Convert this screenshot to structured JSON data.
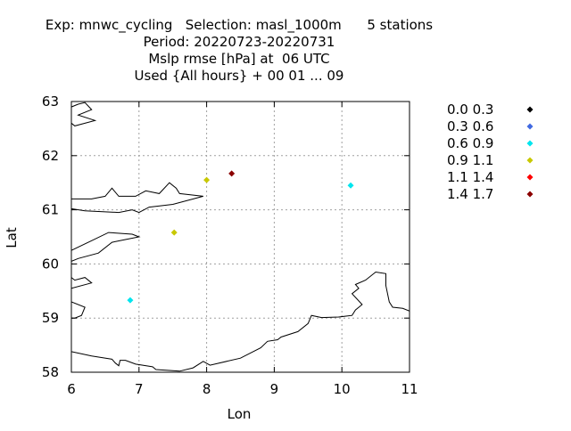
{
  "header": {
    "line1": "Exp: mnwc_cycling   Selection: masl_1000m      5 stations",
    "line2": "Period: 20220723-20220731",
    "line3": "Mslp rmse [hPa] at  06 UTC",
    "line4": "Used {All hours} + 00 01 ... 09"
  },
  "chart_data": {
    "type": "scatter",
    "xlabel": "Lon",
    "ylabel": "Lat",
    "xlim": [
      6,
      11
    ],
    "ylim": [
      58,
      63
    ],
    "xticks": [
      "6",
      "7",
      "8",
      "9",
      "10",
      "11"
    ],
    "yticks": [
      "58",
      "59",
      "60",
      "61",
      "62",
      "63"
    ],
    "grid": true,
    "legend_position": "right",
    "legend": [
      {
        "label": "0.0 0.3",
        "color": "#000000"
      },
      {
        "label": "0.3 0.6",
        "color": "#4169e1"
      },
      {
        "label": "0.6 0.9",
        "color": "#00e5ee"
      },
      {
        "label": "0.9 1.1",
        "color": "#c8c800"
      },
      {
        "label": "1.1 1.4",
        "color": "#ff0000"
      },
      {
        "label": "1.4 1.7",
        "color": "#8b0000"
      }
    ],
    "points": [
      {
        "lon": 6.87,
        "lat": 59.33,
        "class": 2
      },
      {
        "lon": 7.52,
        "lat": 60.58,
        "class": 3
      },
      {
        "lon": 8.0,
        "lat": 61.55,
        "class": 3
      },
      {
        "lon": 8.37,
        "lat": 61.67,
        "class": 5
      },
      {
        "lon": 10.13,
        "lat": 61.45,
        "class": 2
      }
    ],
    "coastlines": [
      [
        [
          6.0,
          58.38
        ],
        [
          6.3,
          58.3
        ],
        [
          6.6,
          58.24
        ],
        [
          6.65,
          58.17
        ],
        [
          6.7,
          58.12
        ],
        [
          6.72,
          58.22
        ],
        [
          6.8,
          58.22
        ],
        [
          6.95,
          58.15
        ],
        [
          7.2,
          58.1
        ],
        [
          7.25,
          58.05
        ],
        [
          7.6,
          58.02
        ],
        [
          7.8,
          58.08
        ],
        [
          7.95,
          58.2
        ],
        [
          8.05,
          58.13
        ],
        [
          8.5,
          58.26
        ],
        [
          8.8,
          58.45
        ],
        [
          8.9,
          58.57
        ],
        [
          9.05,
          58.6
        ],
        [
          9.1,
          58.65
        ],
        [
          9.35,
          58.75
        ],
        [
          9.5,
          58.9
        ],
        [
          9.55,
          59.05
        ],
        [
          9.7,
          59.01
        ],
        [
          9.95,
          59.02
        ],
        [
          10.15,
          59.05
        ],
        [
          10.2,
          59.15
        ],
        [
          10.3,
          59.25
        ],
        [
          10.15,
          59.45
        ],
        [
          10.25,
          59.55
        ],
        [
          10.2,
          59.62
        ],
        [
          10.35,
          59.7
        ],
        [
          10.5,
          59.85
        ],
        [
          10.65,
          59.82
        ],
        [
          10.65,
          59.6
        ],
        [
          10.7,
          59.3
        ],
        [
          10.75,
          59.2
        ],
        [
          10.9,
          59.18
        ],
        [
          11.0,
          59.13
        ]
      ],
      [
        [
          6.0,
          61.02
        ],
        [
          6.2,
          60.98
        ],
        [
          6.7,
          60.95
        ],
        [
          6.9,
          61.0
        ],
        [
          7.0,
          60.95
        ],
        [
          7.15,
          61.05
        ],
        [
          7.5,
          61.1
        ],
        [
          7.95,
          61.25
        ],
        [
          7.6,
          61.3
        ],
        [
          7.55,
          61.4
        ],
        [
          7.45,
          61.5
        ],
        [
          7.3,
          61.3
        ],
        [
          7.1,
          61.35
        ],
        [
          6.95,
          61.25
        ],
        [
          6.7,
          61.25
        ],
        [
          6.6,
          61.4
        ],
        [
          6.5,
          61.25
        ],
        [
          6.3,
          61.2
        ],
        [
          6.0,
          61.2
        ]
      ],
      [
        [
          6.0,
          60.25
        ],
        [
          6.25,
          60.4
        ],
        [
          6.55,
          60.58
        ],
        [
          6.9,
          60.55
        ],
        [
          7.0,
          60.5
        ],
        [
          6.8,
          60.45
        ],
        [
          6.6,
          60.4
        ],
        [
          6.4,
          60.2
        ],
        [
          6.1,
          60.1
        ],
        [
          6.0,
          60.05
        ]
      ],
      [
        [
          6.0,
          59.55
        ],
        [
          6.3,
          59.65
        ],
        [
          6.2,
          59.75
        ],
        [
          6.05,
          59.7
        ],
        [
          6.0,
          59.75
        ]
      ],
      [
        [
          6.0,
          59.3
        ],
        [
          6.2,
          59.2
        ],
        [
          6.15,
          59.05
        ],
        [
          6.05,
          59.0
        ],
        [
          6.0,
          59.0
        ]
      ],
      [
        [
          6.0,
          62.9
        ],
        [
          6.1,
          62.95
        ],
        [
          6.2,
          62.98
        ],
        [
          6.3,
          62.85
        ],
        [
          6.1,
          62.75
        ],
        [
          6.35,
          62.65
        ],
        [
          6.05,
          62.55
        ],
        [
          6.0,
          62.6
        ]
      ]
    ]
  }
}
